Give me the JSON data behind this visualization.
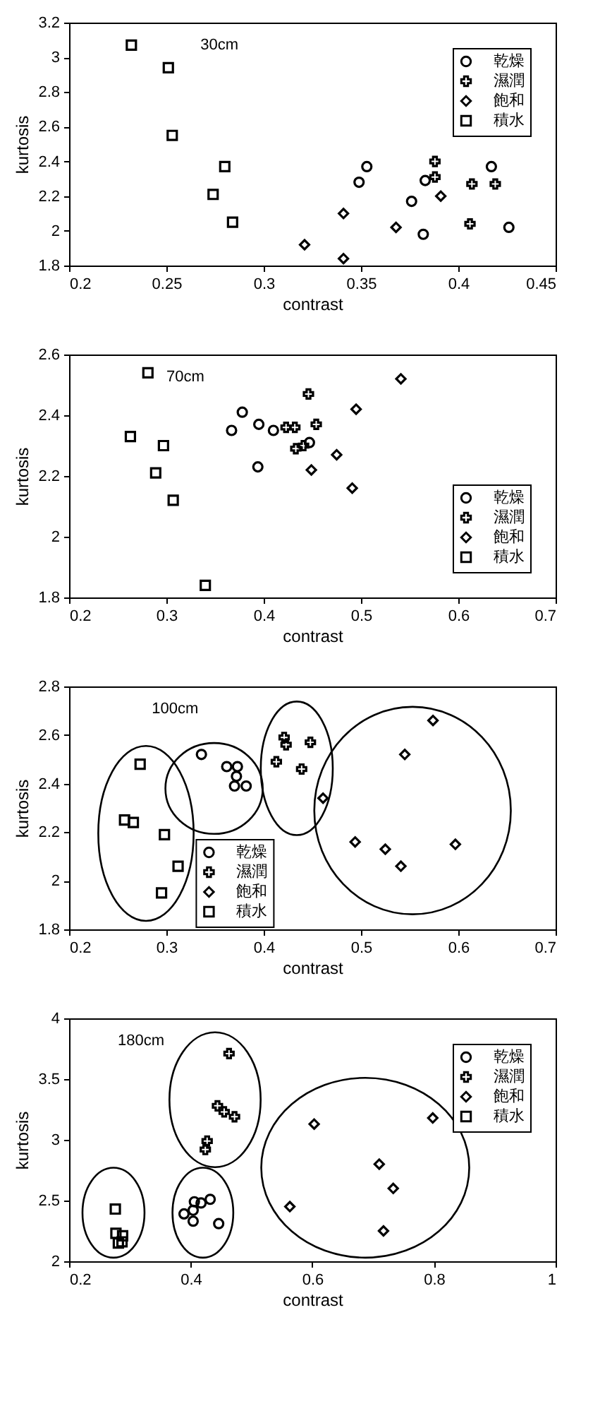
{
  "chart_data": [
    {
      "type": "scatter",
      "annotations": [
        "30cm"
      ],
      "xlabel": "contrast",
      "ylabel": "kurtosis",
      "xlim": [
        0.2,
        0.45
      ],
      "xticks": [
        0.2,
        0.25,
        0.3,
        0.35,
        0.4,
        0.45
      ],
      "ylim": [
        1.8,
        3.2
      ],
      "yticks": [
        1.8,
        2,
        2.2,
        2.4,
        2.6,
        2.8,
        3,
        3.2
      ],
      "grid": false,
      "legend": "top right",
      "series": [
        {
          "name": "乾燥",
          "color": "#000000",
          "marker": "circle",
          "x": [
            0.353,
            0.349,
            0.383,
            0.376,
            0.382,
            0.417,
            0.426
          ],
          "values": [
            2.37,
            2.28,
            2.29,
            2.17,
            1.98,
            2.37,
            2.02
          ]
        },
        {
          "name": "濕潤",
          "color": "#000000",
          "marker": "cross",
          "x": [
            0.388,
            0.388,
            0.407,
            0.419,
            0.406
          ],
          "values": [
            2.4,
            2.31,
            2.27,
            2.27,
            2.04
          ]
        },
        {
          "name": "飽和",
          "color": "#000000",
          "marker": "diamond",
          "x": [
            0.321,
            0.341,
            0.341,
            0.368,
            0.391
          ],
          "values": [
            1.92,
            2.1,
            1.84,
            2.02,
            2.2
          ]
        },
        {
          "name": "積水",
          "color": "#000000",
          "marker": "square",
          "x": [
            0.232,
            0.251,
            0.253,
            0.28,
            0.274,
            0.284
          ],
          "values": [
            3.07,
            2.94,
            2.55,
            2.37,
            2.21,
            2.05
          ]
        }
      ]
    },
    {
      "type": "scatter",
      "annotations": [
        "70cm"
      ],
      "xlabel": "contrast",
      "ylabel": "kurtosis",
      "xlim": [
        0.2,
        0.7
      ],
      "xticks": [
        0.2,
        0.3,
        0.4,
        0.5,
        0.6,
        0.7
      ],
      "ylim": [
        1.8,
        2.6
      ],
      "yticks": [
        1.8,
        2,
        2.2,
        2.4,
        2.6
      ],
      "grid": false,
      "legend": "bottom right",
      "series": [
        {
          "name": "乾燥",
          "color": "#000000",
          "marker": "circle",
          "x": [
            0.378,
            0.395,
            0.367,
            0.41,
            0.447,
            0.394
          ],
          "values": [
            2.41,
            2.37,
            2.35,
            2.35,
            2.31,
            2.23
          ]
        },
        {
          "name": "濕潤",
          "color": "#000000",
          "marker": "cross",
          "x": [
            0.446,
            0.454,
            0.423,
            0.432,
            0.433,
            0.441
          ],
          "values": [
            2.47,
            2.37,
            2.36,
            2.36,
            2.29,
            2.3
          ]
        },
        {
          "name": "飽和",
          "color": "#000000",
          "marker": "diamond",
          "x": [
            0.541,
            0.495,
            0.475,
            0.449,
            0.491
          ],
          "values": [
            2.52,
            2.42,
            2.27,
            2.22,
            2.16
          ]
        },
        {
          "name": "積水",
          "color": "#000000",
          "marker": "square",
          "x": [
            0.281,
            0.263,
            0.297,
            0.289,
            0.307,
            0.34
          ],
          "values": [
            2.54,
            2.33,
            2.3,
            2.21,
            2.12,
            1.84
          ]
        }
      ]
    },
    {
      "type": "scatter",
      "annotations": [
        "100cm"
      ],
      "xlabel": "contrast",
      "ylabel": "kurtosis",
      "xlim": [
        0.2,
        0.7
      ],
      "xticks": [
        0.2,
        0.3,
        0.4,
        0.5,
        0.6,
        0.7
      ],
      "ylim": [
        1.8,
        2.8
      ],
      "yticks": [
        1.8,
        2,
        2.2,
        2.4,
        2.6,
        2.8
      ],
      "grid": false,
      "legend": "bottom",
      "series": [
        {
          "name": "乾燥",
          "color": "#000000",
          "marker": "circle",
          "x": [
            0.336,
            0.362,
            0.373,
            0.372,
            0.37,
            0.382
          ],
          "values": [
            2.52,
            2.47,
            2.47,
            2.43,
            2.39,
            2.39
          ]
        },
        {
          "name": "濕潤",
          "color": "#000000",
          "marker": "cross",
          "x": [
            0.421,
            0.423,
            0.448,
            0.413,
            0.439
          ],
          "values": [
            2.59,
            2.56,
            2.57,
            2.49,
            2.46
          ]
        },
        {
          "name": "飽和",
          "color": "#000000",
          "marker": "diamond",
          "x": [
            0.461,
            0.494,
            0.525,
            0.541,
            0.545,
            0.574,
            0.597
          ],
          "values": [
            2.34,
            2.16,
            2.13,
            2.06,
            2.52,
            2.66,
            2.15
          ]
        },
        {
          "name": "積水",
          "color": "#000000",
          "marker": "square",
          "x": [
            0.273,
            0.257,
            0.266,
            0.298,
            0.312,
            0.295
          ],
          "values": [
            2.48,
            2.25,
            2.24,
            2.19,
            2.06,
            1.95
          ]
        }
      ]
    },
    {
      "type": "scatter",
      "annotations": [
        "180cm"
      ],
      "xlabel": "contrast",
      "ylabel": "kurtosis",
      "xlim": [
        0.2,
        1
      ],
      "xticks": [
        0.2,
        0.4,
        0.6,
        0.8,
        1
      ],
      "ylim": [
        2,
        4
      ],
      "yticks": [
        2,
        2.5,
        3,
        3.5,
        4
      ],
      "grid": false,
      "legend": "top right",
      "series": [
        {
          "name": "乾燥",
          "color": "#000000",
          "marker": "circle",
          "x": [
            0.389,
            0.406,
            0.404,
            0.432,
            0.404,
            0.446,
            0.417
          ],
          "values": [
            2.39,
            2.49,
            2.42,
            2.51,
            2.33,
            2.31,
            2.48
          ]
        },
        {
          "name": "濕潤",
          "color": "#000000",
          "marker": "cross",
          "x": [
            0.463,
            0.444,
            0.455,
            0.472,
            0.427,
            0.424
          ],
          "values": [
            3.71,
            3.28,
            3.23,
            3.19,
            2.99,
            2.92
          ]
        },
        {
          "name": "飽和",
          "color": "#000000",
          "marker": "diamond",
          "x": [
            0.563,
            0.603,
            0.71,
            0.733,
            0.717,
            0.798
          ],
          "values": [
            2.45,
            3.13,
            2.8,
            2.6,
            2.25,
            3.18
          ]
        },
        {
          "name": "積水",
          "color": "#000000",
          "marker": "square",
          "x": [
            0.276,
            0.277,
            0.288,
            0.281,
            0.287
          ],
          "values": [
            2.43,
            2.23,
            2.21,
            2.15,
            2.16
          ]
        }
      ]
    }
  ]
}
